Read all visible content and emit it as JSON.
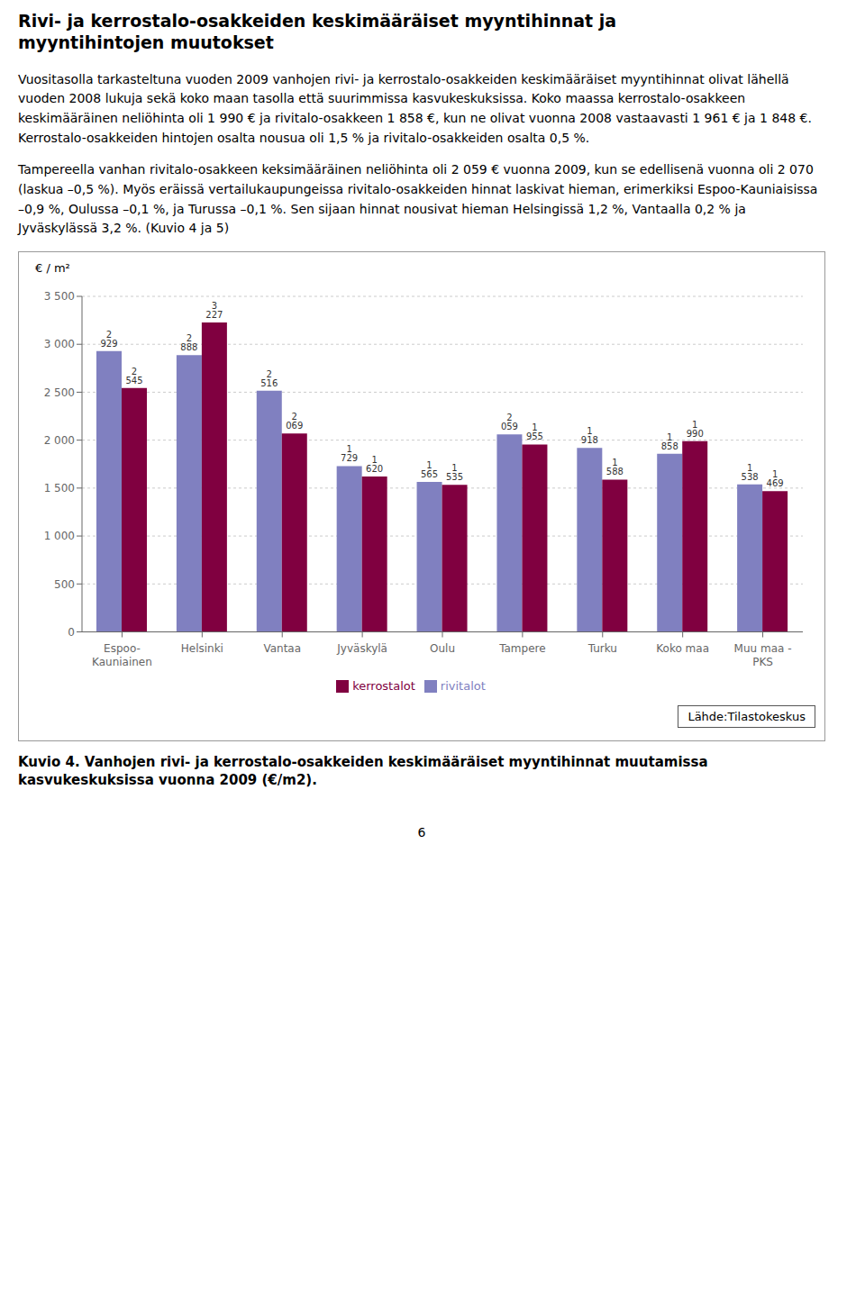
{
  "chart_data": {
    "type": "bar",
    "title": "Rivi- ja kerrostalo-osakkeiden keskimääräiset myyntihinnat ja\nmyyntihintojen muutokset",
    "body_text1": "Vuositasolla tarkasteltuna vuoden 2009 vanhojen rivi- ja kerrostalo-osakkeiden keskimääräiset myyntihinnat olivat lähellä vuoden 2008 lukuja sekä koko maan tasolla että suurimmissa kasvukeskuksissa.  Koko maassa kerrostalo-osakkeen keskimääräinen neliöhinta oli 1 990 € ja rivitalo-osakkeen 1 858 €, kun ne olivat vuonna 2008 vastaavasti 1 961 € ja 1 848 €.  Kerrostalo-osakkeiden hintojen osalta nousua oli 1,5 % ja rivitalo-osakkeiden osalta 0,5 %.",
    "body_text2": "Tampereella vanhan rivitalo-osakkeen keksimääräinen neliöhinta oli 2 059 € vuonna 2009, kun se edellisenä vuonna oli 2 070 (laskua –0,5 %). Myös eräissä vertailukaupungeissa rivitalo-osakkeiden hinnat laskivat hieman, erimerkiksi Espoo-Kauniaisissa –0,9 %, Oulussa –0,1 %, ja Turussa –0,1 %. Sen sijaan hinnat nousivat hieman Helsingissä 1,2 %, Vantaalla 0,2 % ja Jyväskylässä 3,2 %. (Kuvio 4 ja 5)",
    "ylabel": "€ / m²",
    "categories": [
      "Espoo-\nKauniainen",
      "Helsinki",
      "Vantaa",
      "Jyväskylä",
      "Oulu",
      "Tampere",
      "Turku",
      "Koko maa",
      "Muu maa -\nPKS"
    ],
    "series": [
      {
        "name": "rivitalot",
        "color": "#8080c0",
        "values": [
          2929,
          2888,
          2516,
          1729,
          1565,
          2059,
          1918,
          1858,
          1538
        ],
        "value_labels": [
          "2 929",
          "2 888",
          "2 516",
          "1 729",
          "1 565",
          "2 059",
          "1 918",
          "1 858",
          "1 538"
        ]
      },
      {
        "name": "kerrostalot",
        "color": "#800040",
        "values": [
          2545,
          3227,
          2069,
          1620,
          1535,
          1955,
          1588,
          1990,
          1469
        ],
        "value_labels": [
          "2 545",
          "3 227",
          "2 069",
          "1 620",
          "1 535",
          "1 955",
          "1 588",
          "1 990",
          "1 469"
        ]
      }
    ],
    "ylim": [
      0,
      3500
    ],
    "yticks": [
      0,
      500,
      {
        "value": 1000,
        "label": "1 000"
      },
      {
        "value": 1500,
        "label": "1 500"
      },
      {
        "value": 2000,
        "label": "2 000"
      },
      {
        "value": 2500,
        "label": "2 500"
      },
      {
        "value": 3000,
        "label": "3 000"
      },
      {
        "value": 3500,
        "label": "3 500"
      }
    ],
    "grid": true,
    "legend": "bottom",
    "data_labels": true,
    "source_text": "Lähde:Tilastokeskus",
    "caption": "Kuvio 4. Vanhojen rivi- ja kerrostalo-osakkeiden keskimääräiset myyntihinnat muutamissa kasvukeskuksissa vuonna 2009 (€/m2).",
    "page_number": "6"
  }
}
